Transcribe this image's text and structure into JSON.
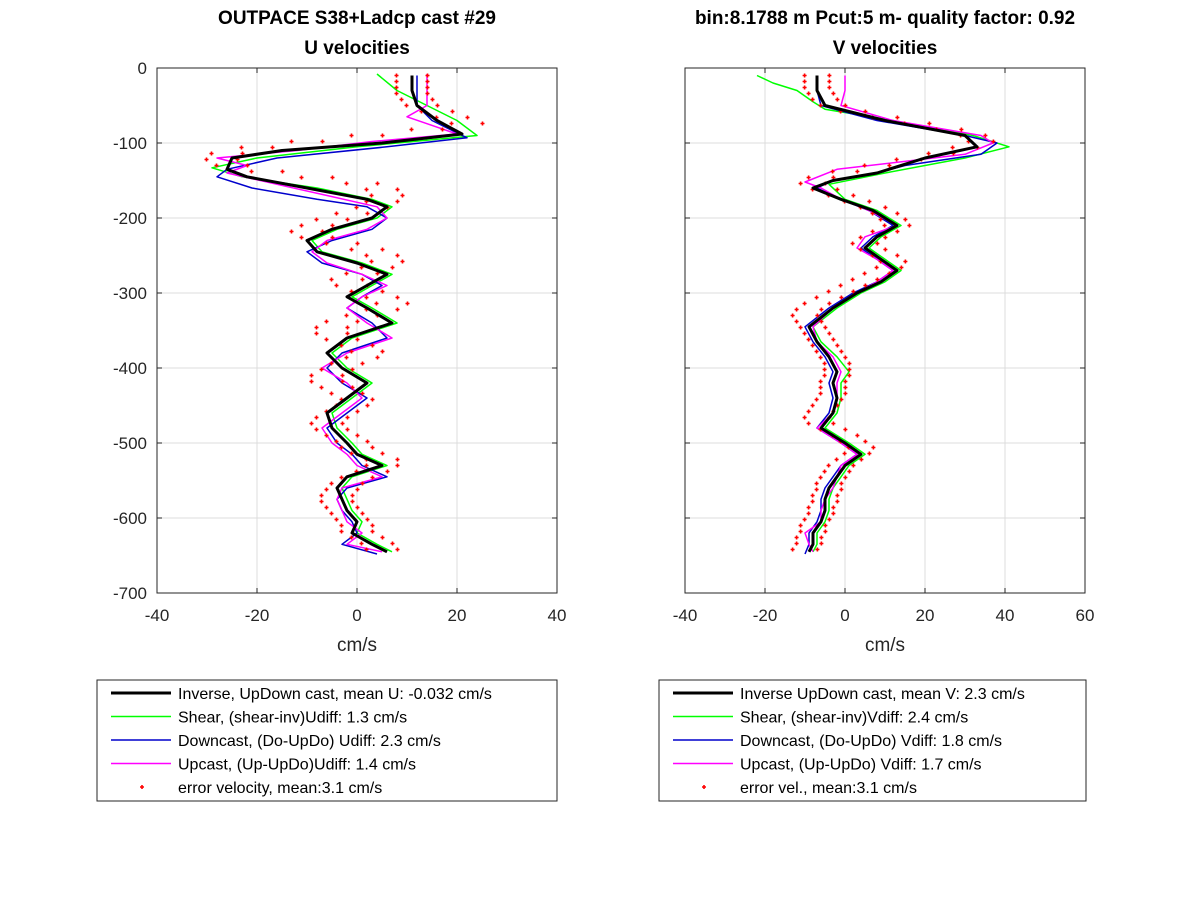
{
  "chart_data": [
    {
      "type": "line",
      "title": [
        "OUTPACE S38+Ladcp cast #29",
        "U velocities"
      ],
      "xlabel": "cm/s",
      "ylabel": "",
      "xlim": [
        -40,
        40
      ],
      "ylim": [
        -700,
        0
      ],
      "xticks": [
        "-40",
        "-20",
        "0",
        "20",
        "40"
      ],
      "yticks": [
        "0",
        "-100",
        "-200",
        "-300",
        "-400",
        "-500",
        "-600",
        "-700"
      ],
      "grid": true,
      "legend": "below",
      "series": [
        {
          "name": "Inverse, UpDown cast, mean U:  -0.032 cm/s",
          "color": "#000000",
          "width": 3,
          "y": [
            -10,
            -30,
            -50,
            -70,
            -88,
            -100,
            -110,
            -120,
            -135,
            -145,
            -160,
            -175,
            -185,
            -200,
            -215,
            -230,
            -245,
            -260,
            -275,
            -290,
            -305,
            -320,
            -340,
            -360,
            -380,
            -400,
            -420,
            -440,
            -460,
            -480,
            -500,
            -515,
            -530,
            -545,
            -560,
            -575,
            -590,
            -605,
            -620,
            -635,
            -645
          ],
          "x": [
            11,
            11,
            12,
            16,
            21,
            5,
            -15,
            -25,
            -26,
            -22,
            -10,
            2,
            6,
            3,
            -5,
            -10,
            -8,
            0,
            6,
            2,
            -2,
            2,
            7,
            -2,
            -6,
            -3,
            2,
            -2,
            -6,
            -5,
            -2,
            0,
            5,
            -2,
            -4,
            -3,
            -2,
            0,
            -1,
            3,
            6
          ]
        },
        {
          "name": "Shear, (shear-inv)Udiff:  1.3 cm/s",
          "color": "#00ff00",
          "width": 1.5,
          "y": [
            -8,
            -30,
            -50,
            -70,
            -90,
            -105,
            -120,
            -133,
            -145,
            -160,
            -175,
            -185,
            -200,
            -215,
            -230,
            -245,
            -260,
            -275,
            -290,
            -305,
            -320,
            -340,
            -360,
            -380,
            -400,
            -420,
            -440,
            -460,
            -480,
            -500,
            -515,
            -530,
            -545,
            -560,
            -575,
            -590,
            -605,
            -620,
            -635,
            -645
          ],
          "x": [
            4,
            8,
            14,
            20,
            24,
            0,
            -20,
            -29,
            -23,
            -8,
            3,
            7,
            4,
            -4,
            -9,
            -7,
            1,
            7,
            3,
            -1,
            3,
            8,
            -1,
            -5,
            -2,
            3,
            -1,
            -5,
            -4,
            -1,
            1,
            6,
            -1,
            -3,
            -2,
            -1,
            1,
            0,
            4,
            7
          ]
        },
        {
          "name": "Downcast, (Do-UpDo) Udiff:  2.3 cm/s",
          "color": "#0000cc",
          "width": 1.5,
          "y": [
            -10,
            -30,
            -50,
            -70,
            -93,
            -105,
            -120,
            -135,
            -145,
            -160,
            -175,
            -185,
            -200,
            -215,
            -230,
            -245,
            -260,
            -275,
            -290,
            -305,
            -320,
            -340,
            -360,
            -380,
            -400,
            -420,
            -440,
            -460,
            -480,
            -500,
            -515,
            -530,
            -545,
            -560,
            -575,
            -590,
            -605,
            -620,
            -635,
            -648
          ],
          "x": [
            12,
            12,
            12,
            15,
            22,
            6,
            -16,
            -26,
            -28,
            -21,
            -8,
            2,
            6,
            3,
            -5,
            -10,
            -7,
            1,
            5,
            1,
            -2,
            3,
            6,
            -3,
            -6,
            -3,
            2,
            -2,
            -6,
            -4,
            -1,
            1,
            6,
            -2,
            -4,
            -3,
            -1,
            0,
            -3,
            4
          ]
        },
        {
          "name": "Upcast, (Up-UpDo)Udiff:  1.4 cm/s",
          "color": "#ff00ff",
          "width": 1.5,
          "y": [
            -8,
            -50,
            -65,
            -88,
            -98,
            -110,
            -120,
            -130,
            -140,
            -155,
            -170,
            -185,
            -200,
            -215,
            -230,
            -245,
            -260,
            -275,
            -290,
            -305,
            -320,
            -340,
            -360,
            -380,
            -400,
            -420,
            -440,
            -460,
            -480,
            -500,
            -515,
            -530,
            -545,
            -560,
            -575,
            -590,
            -605,
            -620,
            -635,
            -645
          ],
          "x": [
            14,
            14,
            10,
            20,
            3,
            -12,
            -28,
            -22,
            -26,
            -16,
            -6,
            4,
            6,
            2,
            -6,
            -9,
            -6,
            1,
            6,
            1,
            -2,
            2,
            7,
            -2,
            -7,
            -2,
            1,
            -3,
            -7,
            -5,
            -2,
            0,
            5,
            -3,
            -4,
            -3,
            -2,
            1,
            -2,
            5
          ]
        },
        {
          "name": "error velocity, mean:3.1 cm/s",
          "color": "#ff0000",
          "marker": "dots",
          "y_from": -10,
          "y_step": -8,
          "count": 80,
          "center": [
            11,
            11,
            11,
            11,
            12,
            13,
            16,
            19,
            22,
            14,
            2,
            -10,
            -20,
            -26,
            -27,
            -25,
            -18,
            -8,
            1,
            5,
            6,
            5,
            3,
            -1,
            -5,
            -8,
            -10,
            -8,
            -3,
            2,
            5,
            6,
            4,
            1,
            -2,
            -1,
            2,
            5,
            7,
            5,
            1,
            -3,
            -5,
            -5,
            -3,
            0,
            2,
            1,
            -2,
            -4,
            -6,
            -6,
            -4,
            -2,
            0,
            -1,
            -3,
            -5,
            -6,
            -5,
            -3,
            -1,
            0,
            2,
            5,
            5,
            3,
            0,
            -2,
            -3,
            -4,
            -4,
            -3,
            -2,
            -1,
            0,
            0,
            2,
            4,
            5
          ],
          "half_width": 3.1
        }
      ]
    },
    {
      "type": "line",
      "title": [
        "bin:8.1788 m  Pcut:5 m- quality factor:  0.92",
        "V velocities"
      ],
      "xlabel": "cm/s",
      "ylabel": "",
      "xlim": [
        -40,
        60
      ],
      "ylim": [
        -700,
        0
      ],
      "xticks": [
        "-40",
        "-20",
        "0",
        "20",
        "40",
        "60"
      ],
      "yticks": [],
      "grid": true,
      "legend": "below",
      "series": [
        {
          "name": "Inverse UpDown cast, mean V:  2.3 cm/s",
          "color": "#000000",
          "width": 3,
          "y": [
            -10,
            -30,
            -50,
            -70,
            -90,
            -105,
            -120,
            -140,
            -150,
            -160,
            -175,
            -190,
            -210,
            -225,
            -240,
            -255,
            -270,
            -285,
            -300,
            -320,
            -345,
            -365,
            -385,
            -405,
            -420,
            -440,
            -460,
            -480,
            -500,
            -515,
            -530,
            -545,
            -560,
            -575,
            -590,
            -605,
            -620,
            -635,
            -645
          ],
          "x": [
            -7,
            -7,
            -5,
            10,
            30,
            33,
            20,
            8,
            -3,
            -8,
            -1,
            7,
            13,
            8,
            5,
            9,
            13,
            9,
            3,
            -3,
            -9,
            -7,
            -4,
            -2,
            -3,
            -2,
            -3,
            -6,
            0,
            4,
            0,
            -2,
            -4,
            -5,
            -5,
            -6,
            -8,
            -8,
            -9
          ]
        },
        {
          "name": "Shear, (shear-inv)Vdiff:  2.4 cm/s",
          "color": "#00ff00",
          "width": 1.5,
          "y": [
            -10,
            -20,
            -30,
            -45,
            -55,
            -70,
            -90,
            -105,
            -120,
            -140,
            -155,
            -175,
            -190,
            -210,
            -225,
            -240,
            -255,
            -270,
            -285,
            -300,
            -320,
            -345,
            -365,
            -385,
            -405,
            -420,
            -440,
            -460,
            -480,
            -500,
            -515,
            -530,
            -545,
            -560,
            -575,
            -590,
            -605,
            -620,
            -635,
            -645
          ],
          "x": [
            -22,
            -18,
            -12,
            -8,
            -5,
            12,
            32,
            41,
            30,
            10,
            -4,
            0,
            8,
            14,
            9,
            6,
            10,
            14,
            10,
            4,
            -2,
            -8,
            -6,
            -2,
            1,
            -1,
            -1,
            -2,
            -5,
            1,
            5,
            1,
            -1,
            -3,
            -4,
            -4,
            -5,
            -7,
            -7,
            -8
          ]
        },
        {
          "name": "Downcast, (Do-UpDo) Vdiff:  1.8 cm/s",
          "color": "#0000cc",
          "width": 1.5,
          "y": [
            -10,
            -30,
            -50,
            -70,
            -90,
            -100,
            -115,
            -130,
            -140,
            -150,
            -160,
            -175,
            -190,
            -210,
            -225,
            -240,
            -255,
            -270,
            -285,
            -300,
            -320,
            -345,
            -365,
            -385,
            -405,
            -420,
            -440,
            -460,
            -480,
            -500,
            -515,
            -530,
            -545,
            -560,
            -575,
            -590,
            -605,
            -620,
            -635,
            -648
          ],
          "x": [
            -7,
            -7,
            -6,
            8,
            30,
            38,
            34,
            15,
            8,
            -3,
            -7,
            -1,
            6,
            12,
            7,
            4,
            8,
            12,
            8,
            2,
            -4,
            -10,
            -8,
            -5,
            -3,
            -4,
            -3,
            -4,
            -7,
            -1,
            3,
            -1,
            -3,
            -5,
            -6,
            -6,
            -7,
            -9,
            -9,
            -10
          ]
        },
        {
          "name": "Upcast, (Up-UpDo) Vdiff:  1.7 cm/s",
          "color": "#ff00ff",
          "width": 1.5,
          "y": [
            -10,
            -30,
            -50,
            -70,
            -90,
            -100,
            -115,
            -135,
            -152,
            -160,
            -175,
            -190,
            -210,
            -225,
            -240,
            -255,
            -270,
            -285,
            -300,
            -320,
            -345,
            -365,
            -385,
            -405,
            -420,
            -440,
            -460,
            -480,
            -500,
            -515,
            -530,
            -545,
            -560,
            -575,
            -590,
            -605,
            -620,
            -635,
            -645
          ],
          "x": [
            0,
            0,
            -1,
            12,
            34,
            37,
            30,
            -2,
            -10,
            -6,
            -1,
            6,
            13,
            5,
            3,
            8,
            12,
            8,
            3,
            -3,
            -8,
            -7,
            -3,
            -1,
            -2,
            -2,
            -3,
            -7,
            -1,
            3,
            -1,
            -2,
            -3,
            -5,
            -6,
            -6,
            -10,
            -9,
            -8
          ]
        },
        {
          "name": "error vel., mean:3.1 cm/s",
          "color": "#ff0000",
          "marker": "dots",
          "y_from": -10,
          "y_step": -8,
          "count": 80,
          "center": [
            -7,
            -7,
            -7,
            -6,
            -5,
            -3,
            2,
            10,
            18,
            26,
            32,
            34,
            30,
            24,
            16,
            8,
            0,
            -6,
            -8,
            -5,
            -1,
            3,
            7,
            10,
            12,
            13,
            10,
            7,
            5,
            7,
            10,
            12,
            11,
            8,
            5,
            2,
            -1,
            -4,
            -7,
            -9,
            -10,
            -9,
            -8,
            -7,
            -6,
            -5,
            -4,
            -3,
            -2,
            -2,
            -2,
            -3,
            -3,
            -3,
            -4,
            -5,
            -6,
            -7,
            -6,
            -3,
            0,
            2,
            4,
            3,
            1,
            -1,
            -2,
            -3,
            -4,
            -4,
            -5,
            -5,
            -6,
            -6,
            -7,
            -8,
            -8,
            -9,
            -9,
            -10
          ],
          "half_width": 3.1
        }
      ]
    }
  ]
}
